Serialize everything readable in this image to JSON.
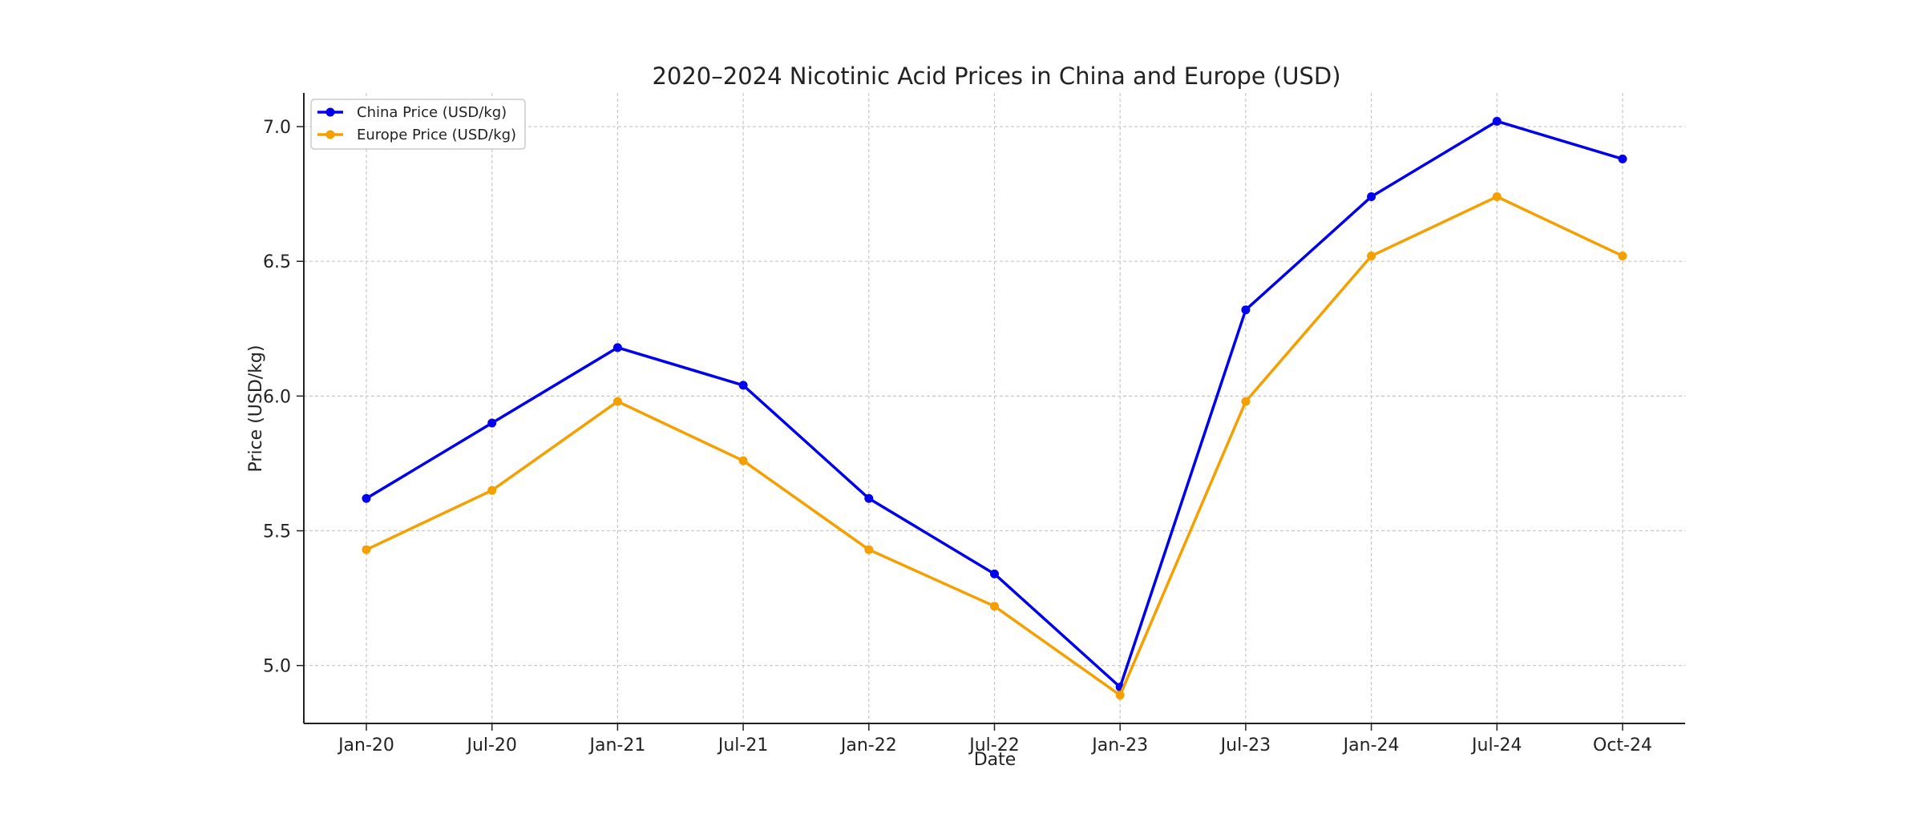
{
  "chart_data": {
    "type": "line",
    "title": "2020–2024 Nicotinic Acid Prices in China and Europe (USD)",
    "xlabel": "Date",
    "ylabel": "Price (USD/kg)",
    "categories": [
      "Jan-20",
      "Jul-20",
      "Jan-21",
      "Jul-21",
      "Jan-22",
      "Jul-22",
      "Jan-23",
      "Jul-23",
      "Jan-24",
      "Jul-24",
      "Oct-24"
    ],
    "series": [
      {
        "name": "China Price (USD/kg)",
        "color": "#0000ee",
        "values": [
          5.62,
          5.9,
          6.18,
          6.04,
          5.62,
          5.34,
          4.92,
          6.32,
          6.74,
          7.02,
          6.88
        ]
      },
      {
        "name": "Europe Price (USD/kg)",
        "color": "#f5a000",
        "values": [
          5.43,
          5.65,
          5.98,
          5.76,
          5.43,
          5.22,
          4.89,
          5.98,
          6.52,
          6.74,
          6.52
        ]
      }
    ],
    "yticks": [
      "5.0",
      "5.5",
      "6.0",
      "6.5",
      "7.0"
    ],
    "ylim": [
      4.785,
      7.125
    ],
    "grid": true,
    "legend_position": "top-left"
  }
}
